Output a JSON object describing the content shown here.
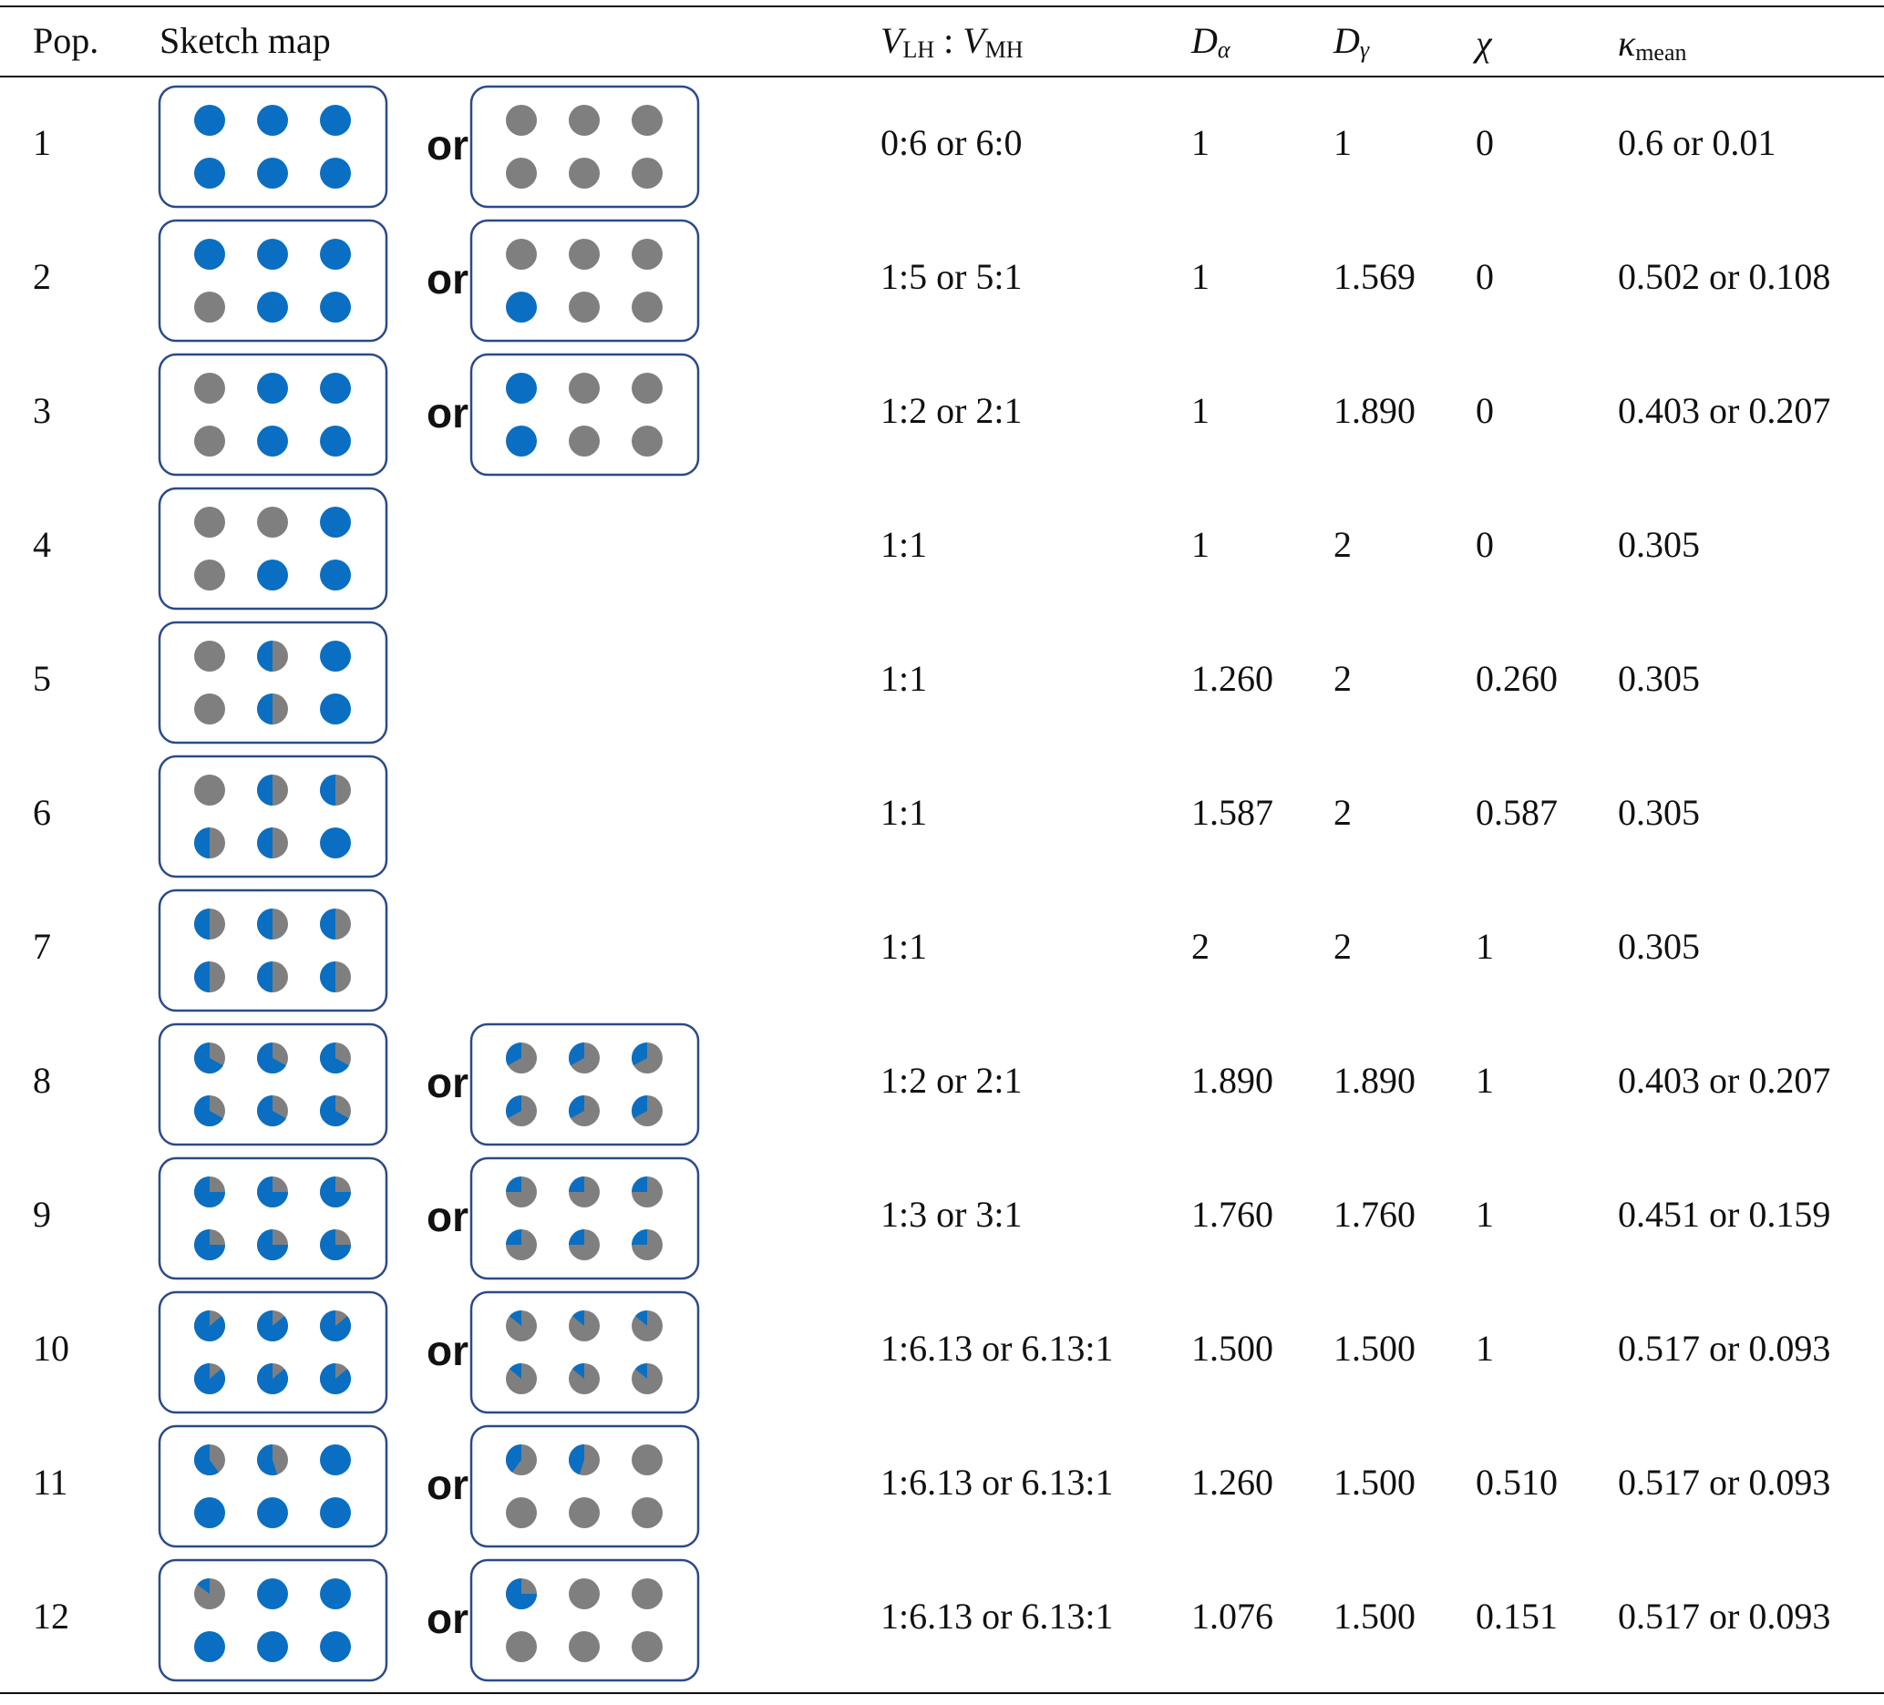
{
  "table": {
    "header": {
      "pop": "Pop.",
      "sketch": "Sketch map",
      "ratio": {
        "v1": "V",
        "sub1": "LH",
        "sep": ":",
        "v2": "V",
        "sub2": "MH"
      },
      "d_alpha": {
        "main": "D",
        "sub": "α"
      },
      "d_gamma": {
        "main": "D",
        "sub": "γ"
      },
      "chi": "χ",
      "kappa": {
        "main": "κ",
        "sub": "mean"
      }
    },
    "rows": [
      {
        "pop": "1",
        "or": "or",
        "ratio": "0:6 or 6:0",
        "d_alpha": "1",
        "d_gamma": "1",
        "chi": "0",
        "kappa": "0.6 or 0.01"
      },
      {
        "pop": "2",
        "or": "or",
        "ratio": "1:5 or 5:1",
        "d_alpha": "1",
        "d_gamma": "1.569",
        "chi": "0",
        "kappa": "0.502 or 0.108"
      },
      {
        "pop": "3",
        "or": "or",
        "ratio": "1:2 or 2:1",
        "d_alpha": "1",
        "d_gamma": "1.890",
        "chi": "0",
        "kappa": "0.403 or 0.207"
      },
      {
        "pop": "4",
        "ratio": "1:1",
        "d_alpha": "1",
        "d_gamma": "2",
        "chi": "0",
        "kappa": "0.305"
      },
      {
        "pop": "5",
        "ratio": "1:1",
        "d_alpha": "1.260",
        "d_gamma": "2",
        "chi": "0.260",
        "kappa": "0.305"
      },
      {
        "pop": "6",
        "ratio": "1:1",
        "d_alpha": "1.587",
        "d_gamma": "2",
        "chi": "0.587",
        "kappa": "0.305"
      },
      {
        "pop": "7",
        "ratio": "1:1",
        "d_alpha": "2",
        "d_gamma": "2",
        "chi": "1",
        "kappa": "0.305"
      },
      {
        "pop": "8",
        "or": "or",
        "ratio": "1:2 or 2:1",
        "d_alpha": "1.890",
        "d_gamma": "1.890",
        "chi": "1",
        "kappa": "0.403 or 0.207"
      },
      {
        "pop": "9",
        "or": "or",
        "ratio": "1:3 or 3:1",
        "d_alpha": "1.760",
        "d_gamma": "1.760",
        "chi": "1",
        "kappa": "0.451 or 0.159"
      },
      {
        "pop": "10",
        "or": "or",
        "ratio": "1:6.13 or 6.13:1",
        "d_alpha": "1.500",
        "d_gamma": "1.500",
        "chi": "1",
        "kappa": "0.517 or 0.093"
      },
      {
        "pop": "11",
        "or": "or",
        "ratio": "1:6.13 or 6.13:1",
        "d_alpha": "1.260",
        "d_gamma": "1.500",
        "chi": "0.510",
        "kappa": "0.517 or 0.093"
      },
      {
        "pop": "12",
        "or": "or",
        "ratio": "1:6.13 or 6.13:1",
        "d_alpha": "1.076",
        "d_gamma": "1.500",
        "chi": "0.151",
        "kappa": "0.517 or 0.093"
      }
    ]
  }
}
